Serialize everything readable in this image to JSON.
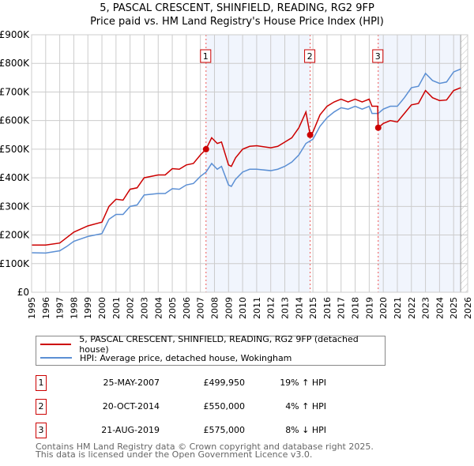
{
  "chart_data": {
    "type": "line",
    "title": "5, PASCAL CRESCENT, SHINFIELD, READING, RG2 9FP",
    "subtitle": "Price paid vs. HM Land Registry's House Price Index (HPI)",
    "xlim": [
      1995,
      2026
    ],
    "ylim": [
      0,
      900000
    ],
    "x_ticks": [
      "1995",
      "1996",
      "1997",
      "1998",
      "1999",
      "2000",
      "2001",
      "2002",
      "2003",
      "2004",
      "2005",
      "2006",
      "2007",
      "2008",
      "2009",
      "2010",
      "2011",
      "2012",
      "2013",
      "2014",
      "2015",
      "2016",
      "2017",
      "2018",
      "2019",
      "2020",
      "2021",
      "2022",
      "2023",
      "2024",
      "2025",
      "2026"
    ],
    "y_ticks": [
      "£0",
      "£100K",
      "£200K",
      "£300K",
      "£400K",
      "£500K",
      "£600K",
      "£700K",
      "£800K",
      "£900K"
    ],
    "grid": true,
    "series": [
      {
        "name": "5, PASCAL CRESCENT, SHINFIELD, READING, RG2 9FP (detached house)",
        "color": "#cc0000",
        "x": [
          1995,
          1996,
          1997,
          1998,
          1999,
          2000,
          2000.5,
          2001,
          2001.5,
          2002,
          2002.5,
          2003,
          2004,
          2004.5,
          2005,
          2005.5,
          2006,
          2006.5,
          2007,
          2007.4,
          2007.8,
          2008.2,
          2008.5,
          2009,
          2009.2,
          2009.5,
          2010,
          2010.5,
          2011,
          2012,
          2012.5,
          2013,
          2013.5,
          2014,
          2014.5,
          2014.8,
          2015,
          2015.5,
          2016,
          2016.5,
          2017,
          2017.5,
          2018,
          2018.5,
          2019,
          2019.2,
          2019.6,
          2019.64,
          2020,
          2020.5,
          2021,
          2021.5,
          2022,
          2022.5,
          2023,
          2023.5,
          2024,
          2024.5,
          2025,
          2025.5
        ],
        "y": [
          165,
          165,
          172,
          210,
          232,
          245,
          300,
          325,
          322,
          360,
          365,
          400,
          410,
          410,
          432,
          430,
          445,
          450,
          480,
          500,
          540,
          520,
          525,
          445,
          440,
          470,
          500,
          510,
          512,
          505,
          510,
          525,
          540,
          575,
          630,
          550,
          560,
          620,
          650,
          665,
          675,
          665,
          675,
          665,
          675,
          650,
          650,
          575,
          590,
          600,
          595,
          625,
          655,
          660,
          705,
          680,
          670,
          672,
          705,
          715
        ]
      },
      {
        "name": "HPI: Average price, detached house, Wokingham",
        "color": "#5b8fd4",
        "x": [
          1995,
          1996,
          1997,
          1997.5,
          1998,
          1999,
          2000,
          2000.5,
          2001,
          2001.5,
          2002,
          2002.5,
          2003,
          2004,
          2004.5,
          2005,
          2005.5,
          2006,
          2006.5,
          2007,
          2007.4,
          2007.8,
          2008.2,
          2008.5,
          2009,
          2009.2,
          2009.5,
          2010,
          2010.5,
          2011,
          2012,
          2012.5,
          2013,
          2013.5,
          2014,
          2014.5,
          2015,
          2015.5,
          2016,
          2016.5,
          2017,
          2017.5,
          2018,
          2018.5,
          2019,
          2019.2,
          2019.64,
          2020,
          2020.5,
          2021,
          2021.5,
          2022,
          2022.5,
          2023,
          2023.5,
          2024,
          2024.5,
          2025,
          2025.5
        ],
        "y": [
          138,
          137,
          145,
          160,
          178,
          195,
          205,
          255,
          272,
          272,
          300,
          305,
          340,
          345,
          345,
          362,
          360,
          375,
          380,
          405,
          420,
          450,
          430,
          440,
          375,
          370,
          395,
          420,
          430,
          430,
          425,
          430,
          440,
          455,
          480,
          520,
          535,
          580,
          610,
          630,
          645,
          640,
          650,
          640,
          650,
          625,
          625,
          640,
          650,
          650,
          680,
          715,
          720,
          765,
          740,
          730,
          735,
          770,
          780
        ]
      }
    ],
    "y_units": "thousands GBP",
    "sales": [
      {
        "label": "1",
        "x": 2007.4,
        "y": 499950
      },
      {
        "label": "2",
        "x": 2014.8,
        "y": 550000
      },
      {
        "label": "3",
        "x": 2019.64,
        "y": 575000
      }
    ],
    "shaded": [
      [
        2007.4,
        2014.8
      ],
      [
        2019.64,
        2025.5
      ]
    ],
    "hatched_from": 2025.5
  },
  "legend": {
    "property": "5, PASCAL CRESCENT, SHINFIELD, READING, RG2 9FP (detached house)",
    "hpi": "HPI: Average price, detached house, Wokingham"
  },
  "transactions": [
    {
      "num": "1",
      "date": "25-MAY-2007",
      "price": "£499,950",
      "hpi": "19% ↑ HPI"
    },
    {
      "num": "2",
      "date": "20-OCT-2014",
      "price": "£550,000",
      "hpi": "4% ↑ HPI"
    },
    {
      "num": "3",
      "date": "21-AUG-2019",
      "price": "£575,000",
      "hpi": "8% ↓ HPI"
    }
  ],
  "footer": {
    "line1": "Contains HM Land Registry data © Crown copyright and database right 2025.",
    "line2": "This data is licensed under the Open Government Licence v3.0."
  }
}
